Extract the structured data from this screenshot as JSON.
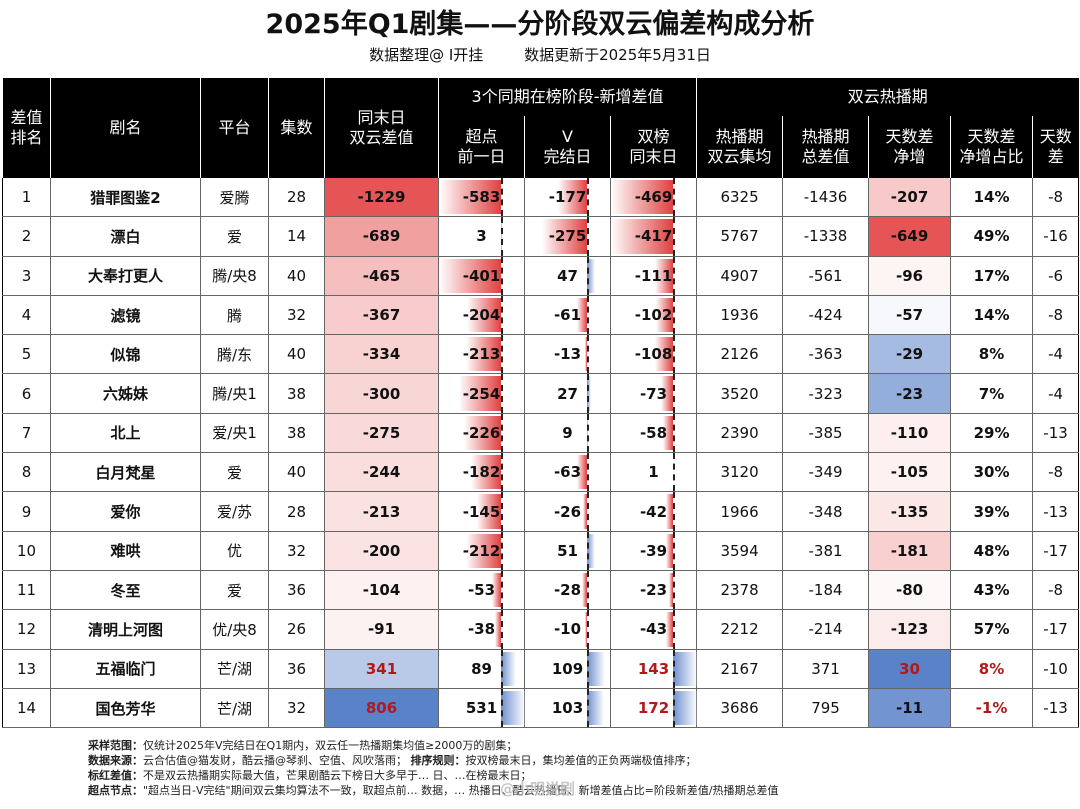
{
  "title": "2025年Q1剧集——分阶段双云偏差构成分析",
  "subtitle": {
    "author": "数据整理@ I开挂",
    "updated": "数据更新于2025年5月31日"
  },
  "headers": {
    "rank": "差值\n排名",
    "name": "剧名",
    "platform": "平台",
    "episodes": "集数",
    "same_day_gap": "同末日\n双云差值",
    "group_stage": "3个同期在榜阶段-新增差值",
    "group_hot": "双云热播期",
    "super_day": "超点\n前一日",
    "v_end": "V\n完结日",
    "dual_end": "双榜\n同末日",
    "hot_avg": "热播期\n双云集均",
    "hot_total": "热播期\n总差值",
    "days_net": "天数差\n净增",
    "days_ratio": "天数差\n净增占比",
    "days_gap": "天数\n差"
  },
  "rows": [
    {
      "rank": "1",
      "name": "猎罪图鉴2",
      "platform": "爱腾",
      "episodes": "28",
      "gap": "-1229",
      "super": "-583",
      "v": "-177",
      "dual": "-469",
      "avg": "6325",
      "total": "-1436",
      "net": "-207",
      "ratio": "14%",
      "days": "-8"
    },
    {
      "rank": "2",
      "name": "漂白",
      "platform": "爱",
      "episodes": "14",
      "gap": "-689",
      "super": "3",
      "v": "-275",
      "dual": "-417",
      "avg": "5767",
      "total": "-1338",
      "net": "-649",
      "ratio": "49%",
      "days": "-16"
    },
    {
      "rank": "3",
      "name": "大奉打更人",
      "platform": "腾/央8",
      "episodes": "40",
      "gap": "-465",
      "super": "-401",
      "v": "47",
      "dual": "-111",
      "avg": "4907",
      "total": "-561",
      "net": "-96",
      "ratio": "17%",
      "days": "-6"
    },
    {
      "rank": "4",
      "name": "滤镜",
      "platform": "腾",
      "episodes": "32",
      "gap": "-367",
      "super": "-204",
      "v": "-61",
      "dual": "-102",
      "avg": "1936",
      "total": "-424",
      "net": "-57",
      "ratio": "14%",
      "days": "-8"
    },
    {
      "rank": "5",
      "name": "似锦",
      "platform": "腾/东",
      "episodes": "40",
      "gap": "-334",
      "super": "-213",
      "v": "-13",
      "dual": "-108",
      "avg": "2126",
      "total": "-363",
      "net": "-29",
      "ratio": "8%",
      "days": "-4"
    },
    {
      "rank": "6",
      "name": "六姊妹",
      "platform": "腾/央1",
      "episodes": "38",
      "gap": "-300",
      "super": "-254",
      "v": "27",
      "dual": "-73",
      "avg": "3520",
      "total": "-323",
      "net": "-23",
      "ratio": "7%",
      "days": "-4"
    },
    {
      "rank": "7",
      "name": "北上",
      "platform": "爱/央1",
      "episodes": "38",
      "gap": "-275",
      "super": "-226",
      "v": "9",
      "dual": "-58",
      "avg": "2390",
      "total": "-385",
      "net": "-110",
      "ratio": "29%",
      "days": "-13"
    },
    {
      "rank": "8",
      "name": "白月梵星",
      "platform": "爱",
      "episodes": "40",
      "gap": "-244",
      "super": "-182",
      "v": "-63",
      "dual": "1",
      "avg": "3120",
      "total": "-349",
      "net": "-105",
      "ratio": "30%",
      "days": "-8"
    },
    {
      "rank": "9",
      "name": "爱你",
      "platform": "爱/苏",
      "episodes": "28",
      "gap": "-213",
      "super": "-145",
      "v": "-26",
      "dual": "-42",
      "avg": "1966",
      "total": "-348",
      "net": "-135",
      "ratio": "39%",
      "days": "-13"
    },
    {
      "rank": "10",
      "name": "难哄",
      "platform": "优",
      "episodes": "32",
      "gap": "-200",
      "super": "-212",
      "v": "51",
      "dual": "-39",
      "avg": "3594",
      "total": "-381",
      "net": "-181",
      "ratio": "48%",
      "days": "-17"
    },
    {
      "rank": "11",
      "name": "冬至",
      "platform": "爱",
      "episodes": "36",
      "gap": "-104",
      "super": "-53",
      "v": "-28",
      "dual": "-23",
      "avg": "2378",
      "total": "-184",
      "net": "-80",
      "ratio": "43%",
      "days": "-8"
    },
    {
      "rank": "12",
      "name": "清明上河图",
      "platform": "优/央8",
      "episodes": "26",
      "gap": "-91",
      "super": "-38",
      "v": "-10",
      "dual": "-43",
      "avg": "2212",
      "total": "-214",
      "net": "-123",
      "ratio": "57%",
      "days": "-17"
    },
    {
      "rank": "13",
      "name": "五福临门",
      "platform": "芒/湖",
      "episodes": "36",
      "gap": "341",
      "super": "89",
      "v": "109",
      "dual": "143",
      "avg": "2167",
      "total": "371",
      "net": "30",
      "ratio": "8%",
      "days": "-10"
    },
    {
      "rank": "14",
      "name": "国色芳华",
      "platform": "芒/湖",
      "episodes": "32",
      "gap": "806",
      "super": "531",
      "v": "103",
      "dual": "172",
      "avg": "3686",
      "total": "795",
      "net": "-11",
      "ratio": "-1%",
      "days": "-13"
    }
  ],
  "footer": [
    {
      "label": "采样范围：",
      "text": "仅统计2025年V完结日在Q1期内，双云任一热播期集均值≥2000万的剧集；"
    },
    {
      "label": "数据来源：",
      "text": "云合估值@猫发财，酷云播@琴刹、空值、风吹落雨；",
      "label2": "排序规则：",
      "text2": "按双榜最末日，集均差值的正负两端极值排序；"
    },
    {
      "label": "标红差值：",
      "text": "不是双云热播期实际最大值，芒果剧酷云下榜日大多早于… 日、…在榜最末日；"
    },
    {
      "label": "超点节点：",
      "text": "\"超点当日-V完结\"期间双云集均算法不一致，取超点前… 数据，… 热播日、酷云热播日、新增差值占比=阶段新差值/热播期总差值"
    }
  ],
  "watermark": "@小明说剧"
}
